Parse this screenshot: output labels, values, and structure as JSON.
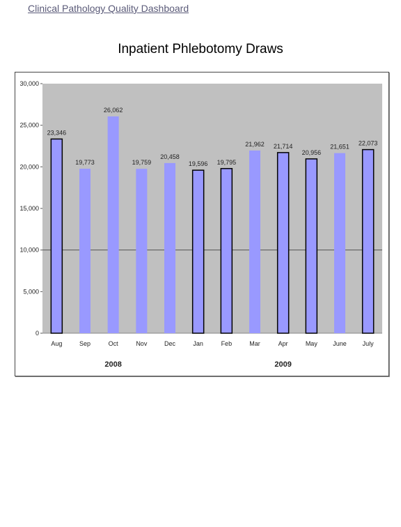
{
  "header": {
    "link_text": "Clinical Pathology Quality Dashboard"
  },
  "chart_data": {
    "type": "bar",
    "title": "Inpatient Phlebotomy Draws",
    "categories": [
      "Aug",
      "Sep",
      "Oct",
      "Nov",
      "Dec",
      "Jan",
      "Feb",
      "Mar",
      "Apr",
      "May",
      "June",
      "July"
    ],
    "values": [
      23346,
      19773,
      26062,
      19759,
      20458,
      19596,
      19795,
      21962,
      21714,
      20956,
      21651,
      22073
    ],
    "value_labels": [
      "23,346",
      "19,773",
      "26,062",
      "19,759",
      "20,458",
      "19,596",
      "19,795",
      "21,962",
      "21,714",
      "20,956",
      "21,651",
      "22,073"
    ],
    "y_ticks": [
      0,
      5000,
      10000,
      15000,
      20000,
      25000,
      30000
    ],
    "y_tick_labels": [
      "0",
      "5,000",
      "10,000",
      "15,000",
      "20,000",
      "25,000",
      "30,000"
    ],
    "ylim": [
      0,
      30000
    ],
    "year_groups": [
      {
        "label": "2008",
        "from": 0,
        "to": 4
      },
      {
        "label": "2009",
        "from": 5,
        "to": 11
      }
    ],
    "reference_line": 10000,
    "bar_color": "#9999ff",
    "plot_bg": "#c0c0c0",
    "bar_outlined": [
      true,
      false,
      false,
      false,
      false,
      true,
      true,
      false,
      true,
      true,
      false,
      true
    ]
  }
}
